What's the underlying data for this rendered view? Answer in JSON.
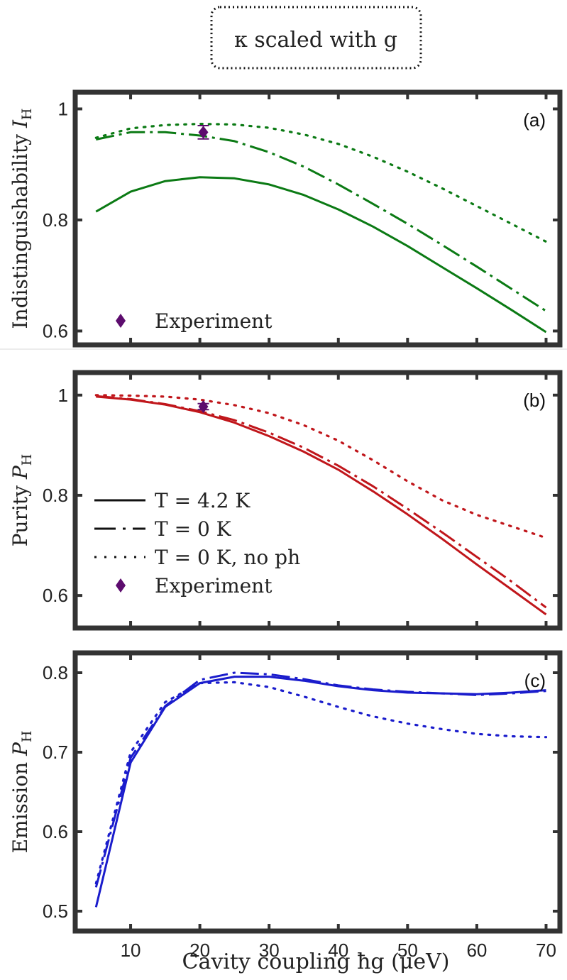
{
  "header": {
    "title": "κ scaled with g"
  },
  "shared_x": {
    "label": "Cavity coupling ħg (μeV)",
    "ticks": [
      "10",
      "20",
      "30",
      "40",
      "50",
      "60",
      "70"
    ],
    "range": [
      2,
      72
    ]
  },
  "chart_data": [
    {
      "id": "a",
      "type": "line",
      "panel_label": "(a)",
      "ylabel": "Indistinguishability I_H",
      "ylabel_main": "Indistinguishability ",
      "ylabel_symbol": "I",
      "ylabel_sub": "H",
      "ylim": [
        0.575,
        1.03
      ],
      "yticks": [
        0.6,
        0.8,
        1
      ],
      "ytick_labels": [
        "0.6",
        "0.8",
        "1"
      ],
      "color": "#0b7a14",
      "x": [
        5,
        10,
        15,
        20,
        25,
        30,
        35,
        40,
        45,
        50,
        55,
        60,
        65,
        70
      ],
      "series": [
        {
          "style": "solid",
          "values": [
            0.815,
            0.851,
            0.87,
            0.877,
            0.875,
            0.864,
            0.845,
            0.819,
            0.788,
            0.753,
            0.715,
            0.677,
            0.638,
            0.598
          ]
        },
        {
          "style": "dashdot",
          "values": [
            0.945,
            0.958,
            0.958,
            0.952,
            0.942,
            0.922,
            0.896,
            0.864,
            0.829,
            0.793,
            0.755,
            0.716,
            0.676,
            0.636
          ]
        },
        {
          "style": "dotted",
          "values": [
            0.948,
            0.965,
            0.971,
            0.973,
            0.972,
            0.966,
            0.954,
            0.937,
            0.914,
            0.887,
            0.857,
            0.825,
            0.793,
            0.761
          ]
        }
      ],
      "experiment": {
        "x": 20.5,
        "y": 0.958,
        "err": 0.012,
        "color": "#5d0c6e"
      },
      "legend": {
        "entries": [
          {
            "label": "Experiment",
            "marker": "diamond"
          }
        ]
      }
    },
    {
      "id": "b",
      "type": "line",
      "panel_label": "(b)",
      "ylabel": "Purity P_H",
      "ylabel_main": "Purity ",
      "ylabel_symbol": "P",
      "ylabel_sub": "H",
      "ylim": [
        0.535,
        1.045
      ],
      "yticks": [
        0.6,
        0.8,
        1
      ],
      "ytick_labels": [
        "0.6",
        "0.8",
        "1"
      ],
      "color": "#c0161b",
      "x": [
        5,
        10,
        15,
        20,
        25,
        30,
        35,
        40,
        45,
        50,
        55,
        60,
        65,
        70
      ],
      "series": [
        {
          "style": "solid",
          "values": [
            0.997,
            0.991,
            0.981,
            0.966,
            0.945,
            0.918,
            0.887,
            0.851,
            0.808,
            0.762,
            0.713,
            0.662,
            0.612,
            0.562
          ]
        },
        {
          "style": "dashdot",
          "values": [
            0.998,
            0.992,
            0.982,
            0.968,
            0.95,
            0.925,
            0.895,
            0.859,
            0.818,
            0.773,
            0.726,
            0.677,
            0.628,
            0.576
          ]
        },
        {
          "style": "dotted",
          "values": [
            1.0,
            0.999,
            0.997,
            0.991,
            0.98,
            0.964,
            0.94,
            0.909,
            0.87,
            0.828,
            0.79,
            0.761,
            0.738,
            0.715
          ]
        }
      ],
      "experiment": {
        "x": 20.5,
        "y": 0.977,
        "err": 0.006,
        "color": "#5d0c6e"
      },
      "legend": {
        "entries": [
          {
            "label": "T = 4.2 K",
            "style": "solid"
          },
          {
            "label": "T = 0 K",
            "style": "dashdot"
          },
          {
            "label": "T = 0 K, no ph",
            "style": "dotted"
          },
          {
            "label": "Experiment",
            "marker": "diamond"
          }
        ]
      }
    },
    {
      "id": "c",
      "type": "line",
      "panel_label": "(c)",
      "ylabel": "Emission P_H",
      "ylabel_main": "Emission ",
      "ylabel_symbol": "P",
      "ylabel_sub": "H",
      "ylim": [
        0.475,
        0.825
      ],
      "yticks": [
        0.5,
        0.6,
        0.7,
        0.8
      ],
      "ytick_labels": [
        "0.5",
        "0.6",
        "0.7",
        "0.8"
      ],
      "color": "#1a1ccc",
      "x": [
        5,
        10,
        15,
        20,
        25,
        30,
        35,
        40,
        45,
        50,
        55,
        60,
        65,
        70
      ],
      "series": [
        {
          "style": "solid",
          "values": [
            0.505,
            0.687,
            0.757,
            0.787,
            0.795,
            0.795,
            0.79,
            0.783,
            0.778,
            0.775,
            0.774,
            0.773,
            0.775,
            0.778
          ]
        },
        {
          "style": "dashdot",
          "values": [
            0.53,
            0.693,
            0.758,
            0.791,
            0.8,
            0.798,
            0.792,
            0.784,
            0.779,
            0.776,
            0.774,
            0.772,
            0.774,
            0.777
          ]
        },
        {
          "style": "dotted",
          "values": [
            0.535,
            0.7,
            0.763,
            0.787,
            0.788,
            0.782,
            0.77,
            0.757,
            0.745,
            0.736,
            0.729,
            0.723,
            0.72,
            0.719
          ]
        }
      ]
    }
  ]
}
